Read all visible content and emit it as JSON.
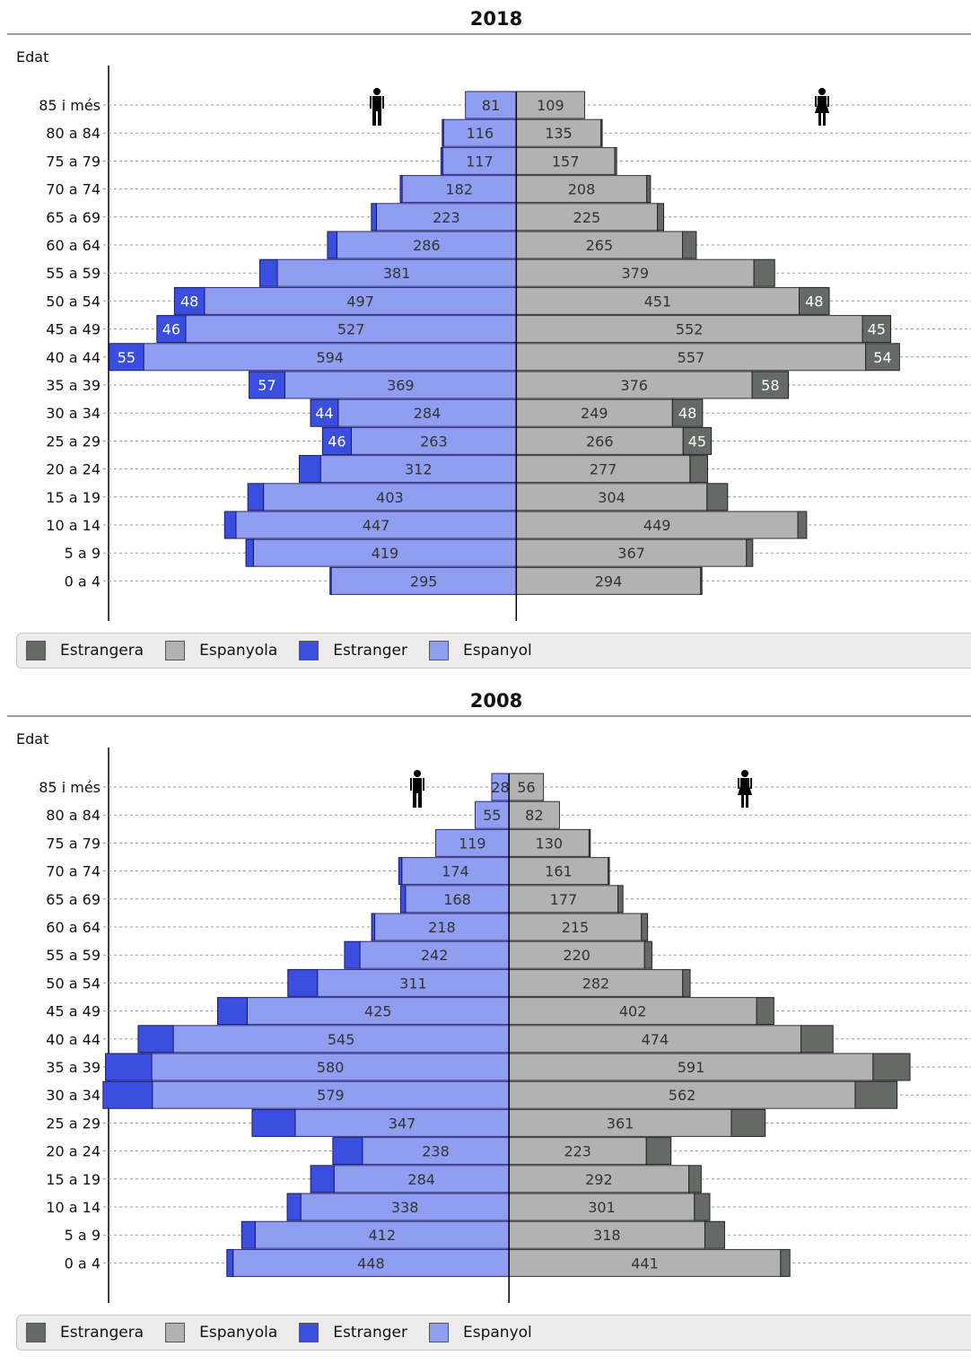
{
  "legend": {
    "items": [
      {
        "label": "Estrangera",
        "color": "#666a66"
      },
      {
        "label": "Espanyola",
        "color": "#b2b2b2"
      },
      {
        "label": "Estranger",
        "color": "#3a4fe0"
      },
      {
        "label": "Espanyol",
        "color": "#8f9ef0"
      }
    ]
  },
  "icons": {
    "male": "man-icon",
    "female": "woman-icon"
  },
  "chart_data": [
    {
      "type": "bar",
      "title": "2018",
      "ylabel": "Edat",
      "categories": [
        "85 i més",
        "80 a 84",
        "75 a 79",
        "70 a 74",
        "65 a 69",
        "60 a 64",
        "55 a 59",
        "50 a 54",
        "45 a 49",
        "40 a 44",
        "35 a 39",
        "30 a 34",
        "25 a 29",
        "20 a 24",
        "15 a 19",
        "10 a 14",
        "5 a 9",
        "0 a 4"
      ],
      "series": [
        {
          "name": "Espanyol",
          "values": [
            81,
            116,
            117,
            182,
            223,
            286,
            381,
            497,
            527,
            594,
            369,
            284,
            263,
            312,
            403,
            447,
            419,
            295
          ]
        },
        {
          "name": "Estranger",
          "values": [
            0,
            2,
            3,
            3,
            8,
            15,
            28,
            48,
            46,
            55,
            57,
            44,
            46,
            34,
            25,
            18,
            12,
            2
          ]
        },
        {
          "name": "Espanyola",
          "values": [
            109,
            135,
            157,
            208,
            225,
            265,
            379,
            451,
            552,
            557,
            376,
            249,
            266,
            277,
            304,
            449,
            367,
            294
          ]
        },
        {
          "name": "Estrangera",
          "values": [
            0,
            2,
            3,
            6,
            10,
            22,
            33,
            48,
            45,
            54,
            58,
            48,
            45,
            28,
            33,
            14,
            10,
            2
          ]
        }
      ],
      "labeled_foreign": {
        "Estranger": [
          48,
          46,
          55,
          57,
          44,
          46
        ],
        "Estrangera": [
          48,
          45,
          54,
          58,
          48,
          45
        ]
      },
      "xlim": [
        -650,
        725
      ]
    },
    {
      "type": "bar",
      "title": "2008",
      "ylabel": "Edat",
      "categories": [
        "85 i més",
        "80 a 84",
        "75 a 79",
        "70 a 74",
        "65 a 69",
        "60 a 64",
        "55 a 59",
        "50 a 54",
        "45 a 49",
        "40 a 44",
        "35 a 39",
        "30 a 34",
        "25 a 29",
        "20 a 24",
        "15 a 19",
        "10 a 14",
        "5 a 9",
        "0 a 4"
      ],
      "series": [
        {
          "name": "Espanyol",
          "values": [
            28,
            55,
            119,
            174,
            168,
            218,
            242,
            311,
            425,
            545,
            580,
            579,
            347,
            238,
            284,
            338,
            412,
            448
          ]
        },
        {
          "name": "Estranger",
          "values": [
            0,
            0,
            0,
            5,
            8,
            5,
            25,
            48,
            48,
            57,
            75,
            80,
            70,
            48,
            38,
            22,
            22,
            10
          ]
        },
        {
          "name": "Espanyola",
          "values": [
            56,
            82,
            130,
            161,
            177,
            215,
            220,
            282,
            402,
            474,
            591,
            562,
            361,
            223,
            292,
            301,
            318,
            441
          ]
        },
        {
          "name": "Estrangera",
          "values": [
            0,
            0,
            2,
            2,
            8,
            10,
            12,
            12,
            28,
            52,
            60,
            68,
            55,
            40,
            20,
            25,
            32,
            15
          ]
        }
      ],
      "labeled_foreign": {
        "Estranger": [],
        "Estrangera": []
      },
      "xlim": [
        -650,
        750
      ]
    }
  ]
}
